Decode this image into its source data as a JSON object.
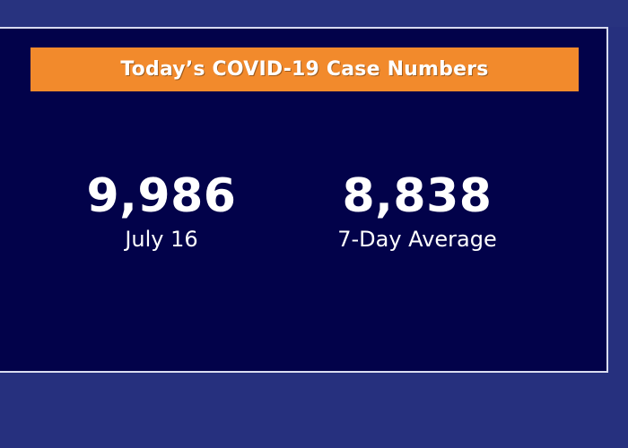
{
  "banner": {
    "title": "Today’s COVID-19 Case Numbers"
  },
  "stats": [
    {
      "value": "9,986",
      "label": "July 16"
    },
    {
      "value": "8,838",
      "label": "7-Day Average"
    }
  ],
  "colors": {
    "background": "#26307e",
    "panel": "#02024a",
    "banner": "#f28a2c",
    "text": "#ffffff"
  }
}
